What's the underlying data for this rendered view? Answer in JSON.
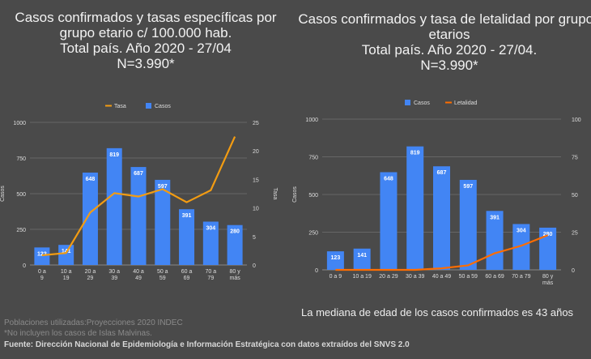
{
  "left_title": [
    "Casos confirmados y tasas específicas por",
    "grupo etario c/ 100.000 hab.",
    "Total país. Año 2020 - 27/04",
    "N=3.990*"
  ],
  "right_title": [
    "Casos confirmados y tasa de letalidad por grupos",
    "etarios",
    "Total país. Año 2020 - 27/04.",
    "N=3.990*"
  ],
  "median_note": "La mediana de edad de los casos confirmados es 43 años",
  "footer": {
    "line1": "Poblaciones utilizadas:Proyecciones 2020  INDEC",
    "line2": "*No incluyen los casos de Islas Malvinas.",
    "source": "Fuente: Dirección Nacional de Epidemiología e Información Estratégica con datos extraídos del SNVS 2.0"
  },
  "colors": {
    "bar": "#4285f4",
    "tasa": "#f39c12",
    "letalidad": "#ff6d00",
    "background": "#4a4a4a"
  },
  "chart_data": [
    {
      "type": "bar+line",
      "categories": [
        "0 a 9",
        "10 a 19",
        "20 a 29",
        "30 a 39",
        "40 a 49",
        "50 a 59",
        "60 a 69",
        "70 a 79",
        "80 y más"
      ],
      "series": [
        {
          "name": "Casos",
          "type": "bar",
          "axis": "left",
          "values": [
            123,
            141,
            648,
            819,
            687,
            597,
            391,
            304,
            280
          ]
        },
        {
          "name": "Tasa",
          "type": "line",
          "axis": "right",
          "values": [
            1.7,
            2.1,
            9.2,
            12.6,
            12.0,
            13.3,
            11.0,
            13.1,
            22.5
          ]
        }
      ],
      "ylabel": "Casos",
      "y2label": "Tasa",
      "ylim": [
        0,
        1000
      ],
      "y2lim": [
        0,
        25
      ],
      "yticks": [
        0,
        250,
        500,
        750,
        1000
      ],
      "y2ticks": [
        0,
        5,
        10,
        15,
        20,
        25
      ],
      "legend": [
        "Tasa",
        "Casos"
      ],
      "legend_position": "top",
      "grid": true
    },
    {
      "type": "bar+line",
      "categories": [
        "0 a 9",
        "10 a 19",
        "20 a 29",
        "30 a 39",
        "40 a 49",
        "50 a 59",
        "60 a 69",
        "70 a 79",
        "80 y más"
      ],
      "series": [
        {
          "name": "Casos",
          "type": "bar",
          "axis": "left",
          "values": [
            123,
            141,
            648,
            819,
            687,
            597,
            391,
            304,
            280
          ]
        },
        {
          "name": "Letalidad",
          "type": "line",
          "axis": "right",
          "values": [
            0,
            0,
            0,
            0,
            1,
            3,
            11,
            16,
            23
          ]
        }
      ],
      "ylabel": "Casos",
      "ylim": [
        0,
        1000
      ],
      "y2lim": [
        0,
        100
      ],
      "yticks": [
        0,
        250,
        500,
        750,
        1000
      ],
      "y2ticks": [
        0,
        25,
        50,
        75,
        100
      ],
      "legend": [
        "Casos",
        "Letalidad"
      ],
      "legend_position": "top",
      "grid": true
    }
  ]
}
